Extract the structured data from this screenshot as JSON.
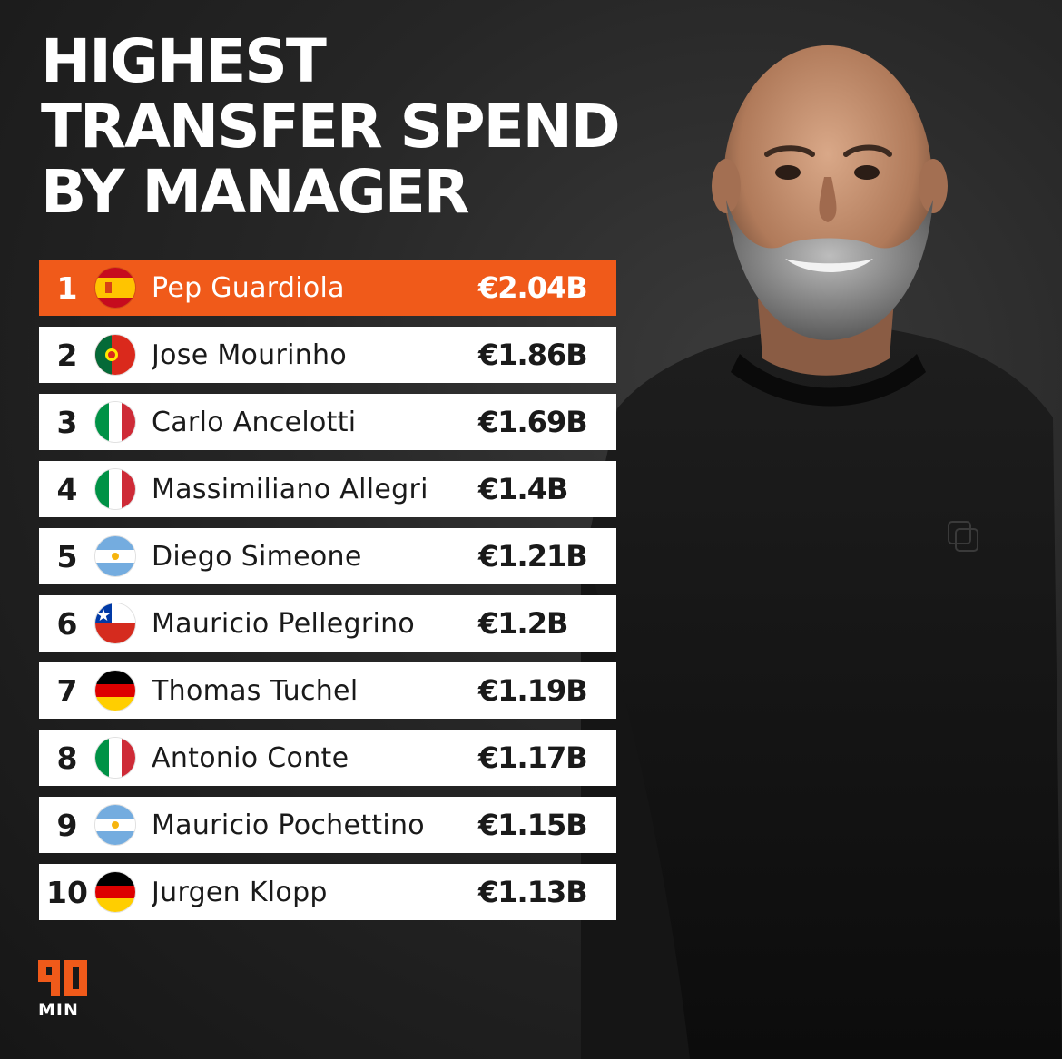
{
  "title": {
    "line1": "HIGHEST",
    "line2": "TRANSFER SPEND",
    "line3": "BY MANAGER"
  },
  "colors": {
    "accent": "#f05a1a",
    "row_bg": "#ffffff",
    "background": "#222222"
  },
  "rankings": [
    {
      "rank": "1",
      "name": "Pep Guardiola",
      "amount": "€2.04B",
      "flag": "spain-flag"
    },
    {
      "rank": "2",
      "name": "Jose Mourinho",
      "amount": "€1.86B",
      "flag": "portugal-flag"
    },
    {
      "rank": "3",
      "name": "Carlo Ancelotti",
      "amount": "€1.69B",
      "flag": "italy-flag"
    },
    {
      "rank": "4",
      "name": "Massimiliano Allegri",
      "amount": "€1.4B",
      "flag": "italy-flag"
    },
    {
      "rank": "5",
      "name": "Diego Simeone",
      "amount": "€1.21B",
      "flag": "argentina-flag"
    },
    {
      "rank": "6",
      "name": "Mauricio Pellegrino",
      "amount": "€1.2B",
      "flag": "chile-flag"
    },
    {
      "rank": "7",
      "name": "Thomas Tuchel",
      "amount": "€1.19B",
      "flag": "germany-flag"
    },
    {
      "rank": "8",
      "name": "Antonio Conte",
      "amount": "€1.17B",
      "flag": "italy-flag"
    },
    {
      "rank": "9",
      "name": "Mauricio Pochettino",
      "amount": "€1.15B",
      "flag": "argentina-flag"
    },
    {
      "rank": "10",
      "name": "Jurgen Klopp",
      "amount": "€1.13B",
      "flag": "germany-flag"
    }
  ],
  "logo": {
    "mark": "90",
    "text": "MIN"
  }
}
